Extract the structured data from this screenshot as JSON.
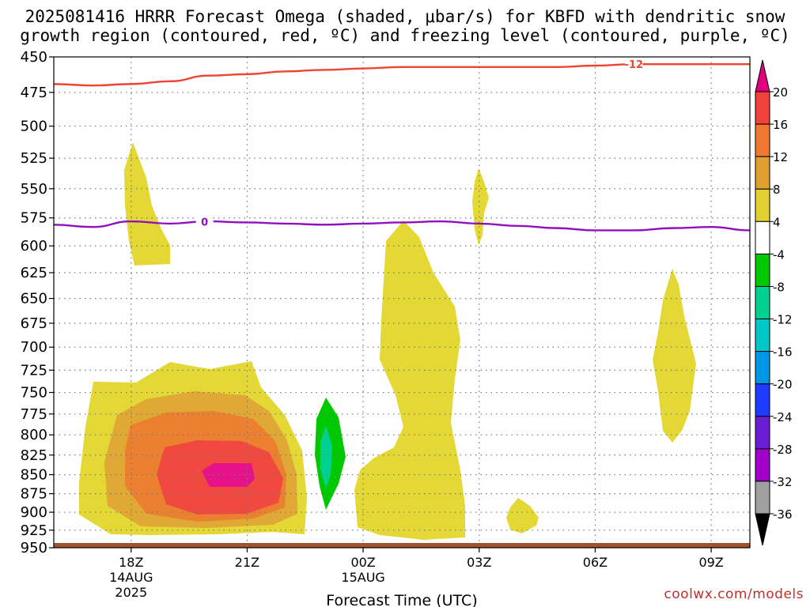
{
  "title_line1": "2025081416 HRRR Forecast Omega (shaded, μbar/s) for KBFD with dendritic snow",
  "title_line2": "growth region (contoured, red, ºC) and freezing level (contoured, purple, ºC)",
  "credit": "coolwx.com/models",
  "chart_data": {
    "type": "heatmap",
    "title": "2025081416 HRRR Forecast Omega (shaded, μbar/s) for KBFD with dendritic snow growth region (contoured, red, ºC) and freezing level (contoured, purple, ºC)",
    "xlabel": "Forecast Time (UTC)",
    "ylabel": "",
    "x_ticks": [
      {
        "label": "18Z",
        "date": "14AUG",
        "year": "2025",
        "hour": 18
      },
      {
        "label": "21Z",
        "hour": 21
      },
      {
        "label": "00Z",
        "date": "15AUG",
        "hour": 24
      },
      {
        "label": "03Z",
        "hour": 27
      },
      {
        "label": "06Z",
        "hour": 30
      },
      {
        "label": "09Z",
        "hour": 33
      }
    ],
    "xlim_hours_from_14AUG_00Z": [
      16,
      34
    ],
    "y_ticks": [
      "450",
      "475",
      "500",
      "525",
      "550",
      "575",
      "600",
      "625",
      "650",
      "675",
      "700",
      "725",
      "750",
      "775",
      "800",
      "825",
      "850",
      "875",
      "900",
      "925",
      "950"
    ],
    "ylim_mb": [
      950,
      450
    ],
    "y_scale": "log",
    "grid": true,
    "colorbar": {
      "ticks": [
        "20",
        "16",
        "12",
        "8",
        "4",
        "-4",
        "-8",
        "-12",
        "-16",
        "-20",
        "-24",
        "-28",
        "-32",
        "-36"
      ],
      "colors": [
        "#e0007f",
        "#f0413c",
        "#f07830",
        "#e0a030",
        "#e0d030",
        "#ffffff",
        "#00c800",
        "#00d090",
        "#00c8c8",
        "#0096e6",
        "#1e3cff",
        "#6a1ed2",
        "#a000c8",
        "#a0a0a0",
        "#000000"
      ]
    },
    "contours": [
      {
        "label": "-12",
        "color": "#ee4433",
        "points": [
          [
            16,
            469
          ],
          [
            17,
            470
          ],
          [
            18,
            469
          ],
          [
            19,
            467
          ],
          [
            20,
            463
          ],
          [
            21,
            462
          ],
          [
            22,
            460
          ],
          [
            23,
            459
          ],
          [
            24,
            458
          ],
          [
            25,
            457
          ],
          [
            26,
            457
          ],
          [
            27,
            457
          ],
          [
            28,
            457
          ],
          [
            29,
            457
          ],
          [
            30,
            456
          ],
          [
            31,
            455
          ],
          [
            32,
            455
          ],
          [
            33,
            455
          ],
          [
            34,
            455
          ]
        ]
      },
      {
        "label": "0",
        "color": "#9010c0",
        "points": [
          [
            16,
            581
          ],
          [
            17,
            583
          ],
          [
            18,
            578
          ],
          [
            19,
            580
          ],
          [
            20,
            578
          ],
          [
            21,
            579
          ],
          [
            22,
            580
          ],
          [
            23,
            581
          ],
          [
            24,
            580
          ],
          [
            25,
            579
          ],
          [
            26,
            578
          ],
          [
            27,
            580
          ],
          [
            28,
            582
          ],
          [
            29,
            584
          ],
          [
            30,
            586
          ],
          [
            31,
            586
          ],
          [
            32,
            584
          ],
          [
            33,
            583
          ],
          [
            34,
            586
          ]
        ]
      }
    ],
    "surface_band_mb": [
      946,
      950
    ]
  }
}
